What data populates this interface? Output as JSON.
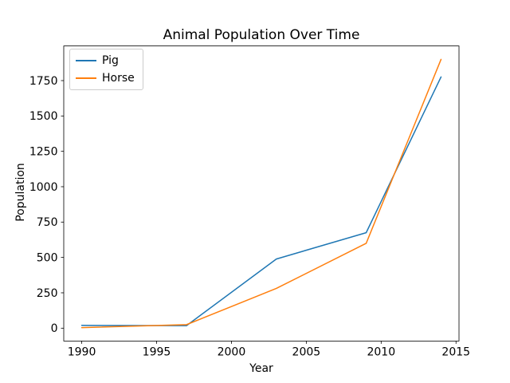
{
  "chart_data": {
    "type": "line",
    "title": "Animal Population Over Time",
    "xlabel": "Year",
    "ylabel": "Population",
    "x": [
      1990,
      1997,
      2003,
      2009,
      2014
    ],
    "series": [
      {
        "name": "Pig",
        "color": "#1f77b4",
        "values": [
          20,
          18,
          489,
          675,
          1776
        ]
      },
      {
        "name": "Horse",
        "color": "#ff7f0e",
        "values": [
          4,
          25,
          281,
          600,
          1900
        ]
      }
    ],
    "xlim": [
      1988.8,
      2015.2
    ],
    "ylim": [
      -90.8,
      1994.8
    ],
    "x_ticks": [
      1990,
      1995,
      2000,
      2005,
      2010,
      2015
    ],
    "y_ticks": [
      0,
      250,
      500,
      750,
      1000,
      1250,
      1500,
      1750
    ],
    "grid": false,
    "legend_position": "upper-left",
    "axis_color": "#000000",
    "background_color": "#ffffff"
  }
}
